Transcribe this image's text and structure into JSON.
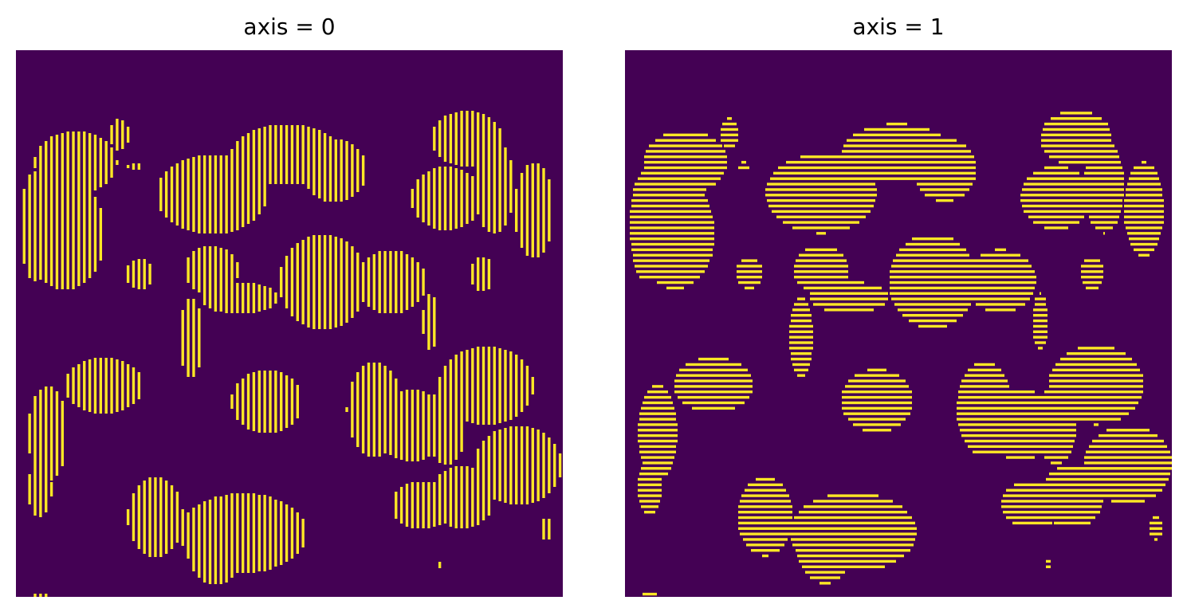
{
  "figure": {
    "panels": [
      {
        "title": "axis = 0"
      },
      {
        "title": "axis = 1"
      }
    ],
    "colors": {
      "background": "#440154",
      "stripe": "#fde725"
    }
  }
}
